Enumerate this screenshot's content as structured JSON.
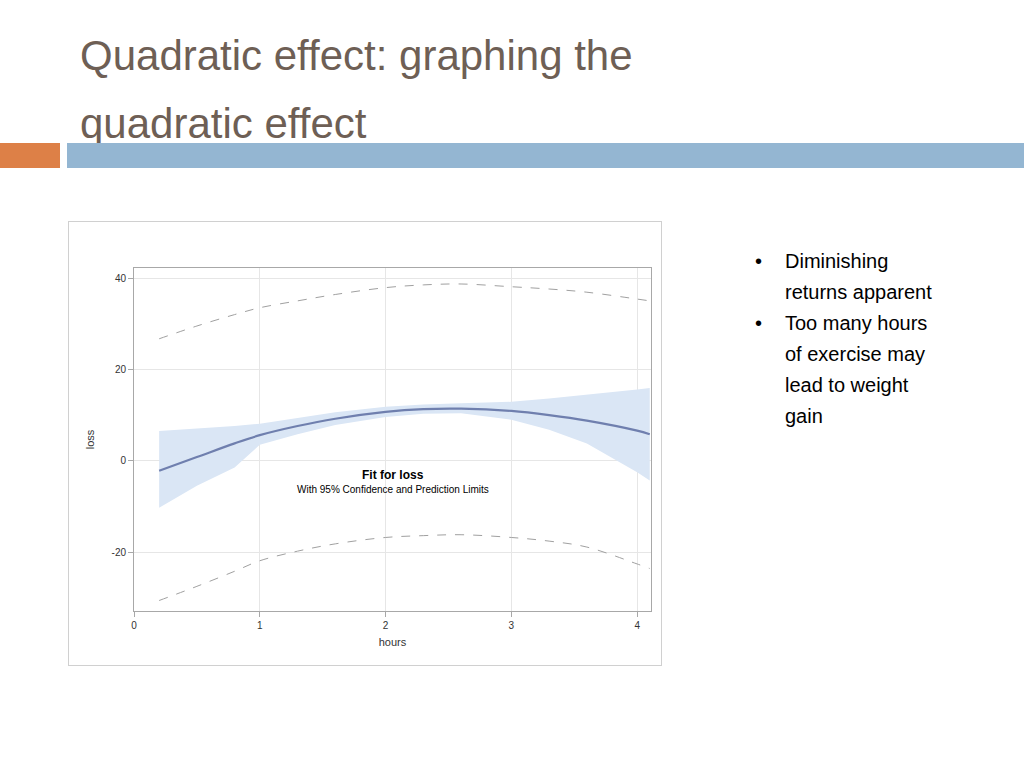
{
  "slide": {
    "title": "Quadratic effect: graphing the quadratic effect",
    "bullets": [
      "Diminishing returns apparent",
      "Too many hours of exercise may lead to weight gain"
    ]
  },
  "chart_data": {
    "type": "line",
    "title": "Fit for loss",
    "subtitle": "With 95% Confidence and Prediction Limits",
    "x_label": "hours",
    "y_label": "loss",
    "x": [
      0.2,
      0.5,
      0.8,
      1.0,
      1.3,
      1.6,
      2.0,
      2.3,
      2.6,
      3.0,
      3.3,
      3.6,
      4.0,
      4.1
    ],
    "series": [
      {
        "type": "band",
        "color": "#dae6f5",
        "lower": [
          -10.3,
          -5.5,
          -1.5,
          3.5,
          5.8,
          7.8,
          9.6,
          10.3,
          10.4,
          9.0,
          6.8,
          3.8,
          -2.5,
          -4.3
        ],
        "upper": [
          6.5,
          7.0,
          7.6,
          8.1,
          9.4,
          10.6,
          11.8,
          12.3,
          12.6,
          12.9,
          13.6,
          14.4,
          15.6,
          15.9
        ]
      },
      {
        "type": "line",
        "color": "#a0a0a0",
        "line_style": "dashed",
        "values": [
          26.7,
          29.5,
          32.0,
          33.5,
          35.0,
          36.4,
          37.9,
          38.5,
          38.7,
          38.1,
          37.6,
          36.9,
          35.4,
          35.0
        ]
      },
      {
        "type": "line",
        "color": "#a0a0a0",
        "line_style": "dashed",
        "values": [
          -30.6,
          -27.5,
          -24.2,
          -21.9,
          -19.8,
          -18.2,
          -16.8,
          -16.4,
          -16.2,
          -16.8,
          -17.6,
          -18.9,
          -22.6,
          -23.6
        ]
      },
      {
        "type": "line",
        "color": "#6f7fae",
        "line_style": "solid",
        "values": [
          -2.2,
          0.8,
          3.8,
          5.6,
          7.6,
          9.2,
          10.7,
          11.3,
          11.4,
          10.9,
          10.0,
          8.8,
          6.6,
          5.8
        ]
      }
    ],
    "xlim": [
      0,
      4.11
    ],
    "xticks": [
      0,
      1,
      2,
      3,
      4
    ],
    "ylim": [
      -32.9,
      42.2
    ],
    "yticks": [
      -20,
      0,
      20,
      40
    ],
    "grid": true
  }
}
